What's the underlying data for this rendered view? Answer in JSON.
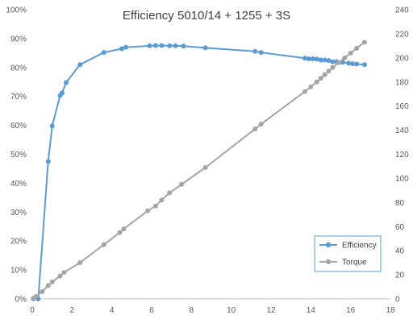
{
  "chart_data": {
    "type": "scatter",
    "title": "Efficiency 5010/14 + 1255 + 3S",
    "xlabel": "",
    "ylabel": "",
    "y2label": "",
    "xlim": [
      0,
      18
    ],
    "x_ticks": [
      "0",
      "2",
      "4",
      "6",
      "8",
      "10",
      "12",
      "14",
      "16",
      "18"
    ],
    "ylim": [
      0,
      1
    ],
    "y_ticks": [
      "0%",
      "10%",
      "20%",
      "30%",
      "40%",
      "50%",
      "60%",
      "70%",
      "80%",
      "90%",
      "100%"
    ],
    "y2lim": [
      0,
      240
    ],
    "y2_ticks": [
      "0",
      "20",
      "40",
      "60",
      "80",
      "100",
      "120",
      "140",
      "160",
      "180",
      "200",
      "220",
      "240"
    ],
    "grid": false,
    "legend_position": "bottom-right",
    "colors": {
      "Efficiency": "#5b9bd5",
      "Torque": "#a5a5a5"
    },
    "series": [
      {
        "name": "Efficiency",
        "axis": "left",
        "x": [
          0.05,
          0.3,
          0.8,
          1.0,
          1.4,
          1.5,
          1.7,
          2.4,
          3.6,
          4.5,
          4.7,
          5.9,
          6.2,
          6.5,
          6.9,
          7.2,
          7.6,
          8.7,
          11.2,
          11.5,
          13.7,
          13.9,
          14.1,
          14.3,
          14.5,
          14.7,
          14.9,
          15.1,
          15.3,
          15.6,
          15.9,
          16.1,
          16.3,
          16.7
        ],
        "y": [
          0.0,
          0.0,
          0.475,
          0.598,
          0.703,
          0.712,
          0.748,
          0.81,
          0.852,
          0.865,
          0.87,
          0.875,
          0.876,
          0.876,
          0.875,
          0.875,
          0.874,
          0.868,
          0.856,
          0.852,
          0.832,
          0.83,
          0.83,
          0.829,
          0.826,
          0.826,
          0.824,
          0.82,
          0.82,
          0.818,
          0.815,
          0.813,
          0.812,
          0.81
        ]
      },
      {
        "name": "Torque",
        "axis": "right",
        "x": [
          0.05,
          0.2,
          0.5,
          0.8,
          1.0,
          1.4,
          1.6,
          2.4,
          3.6,
          4.4,
          4.6,
          5.8,
          6.2,
          6.5,
          6.9,
          7.5,
          8.7,
          11.2,
          11.5,
          13.7,
          14.0,
          14.3,
          14.5,
          14.7,
          14.9,
          15.1,
          15.4,
          15.7,
          16.0,
          16.3,
          16.7
        ],
        "y": [
          0.5,
          2,
          6,
          11,
          14,
          19,
          22,
          30,
          45,
          55,
          58,
          73,
          77,
          82,
          88,
          95,
          109,
          141,
          145,
          172,
          176,
          180,
          183,
          186,
          189,
          192,
          196,
          200,
          204,
          208,
          213
        ]
      }
    ]
  }
}
